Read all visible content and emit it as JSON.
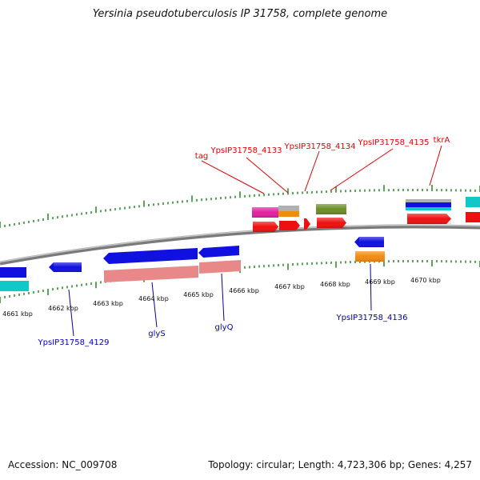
{
  "title": "Yersinia pseudotuberculosis IP 31758, complete genome",
  "footer": {
    "accession": "Accession: NC_009708",
    "summary": "Topology: circular; Length: 4,723,306 bp; Genes: 4,257"
  },
  "colors": {
    "backbone": "#7f7f7f",
    "tick": "#2f8f2f",
    "top_label": "#dd0000",
    "bottom_label": "#0000aa",
    "blue_gene": "#1010e0",
    "cyan_gene": "#10c8c8",
    "red_gene": "#ee1010",
    "pink_gene": "#e88888",
    "magenta_gene": "#e020a0",
    "orange_gene": "#f08c10",
    "olive_gene": "#6b8e23",
    "grey_gene": "#b0b0b0"
  },
  "scale_labels": [
    "4661 kbp",
    "4662 kbp",
    "4663 kbp",
    "4664 kbp",
    "4665 kbp",
    "4666 kbp",
    "4667 kbp",
    "4668 kbp",
    "4669 kbp",
    "4670 kbp"
  ],
  "top_gene_labels": [
    "tag",
    "YpsIP31758_4133",
    "YpsIP31758_4134",
    "YpsIP31758_4135",
    "tkrA"
  ],
  "bottom_gene_labels": [
    "YpsIP31758_4129",
    "glyS",
    "glyQ",
    "YpsIP31758_4136"
  ]
}
